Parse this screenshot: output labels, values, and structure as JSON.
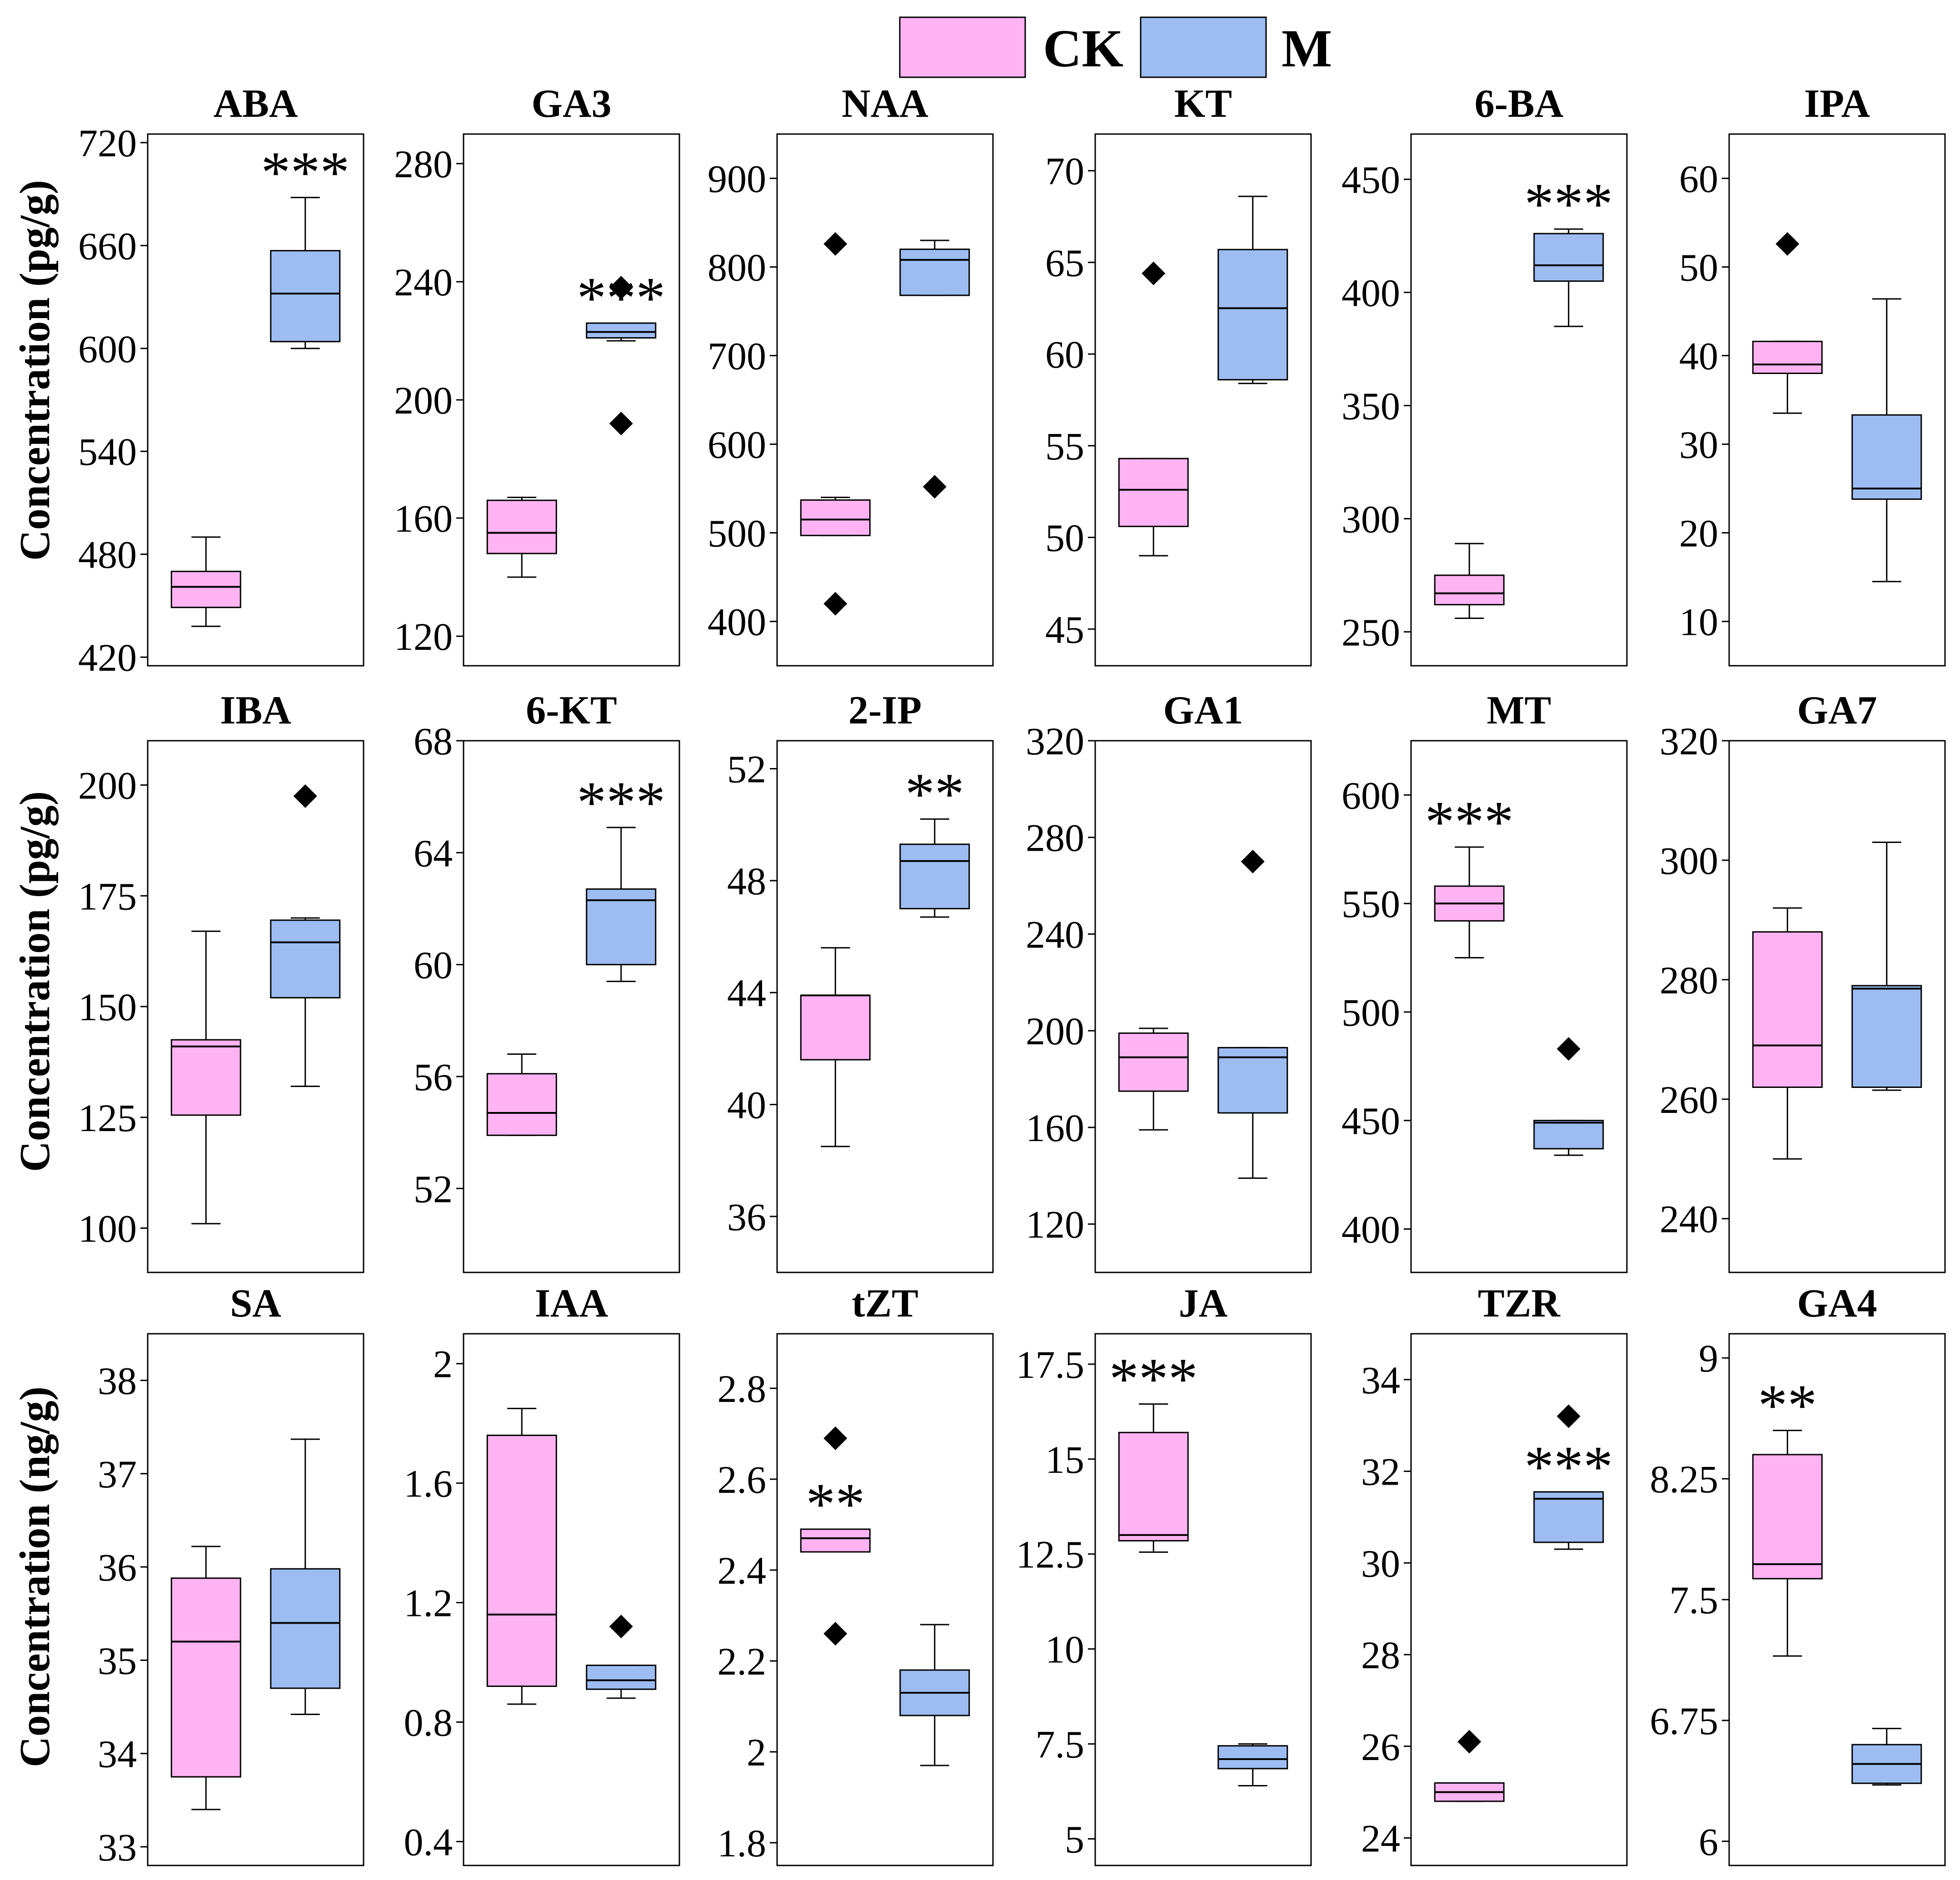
{
  "legend": {
    "items": [
      {
        "label": "CK",
        "color": "#ffb3f2"
      },
      {
        "label": "M",
        "color": "#9cbcf2"
      }
    ]
  },
  "ylabels": [
    "Concentration (pg/g)",
    "Concentration (pg/g)",
    "Concentration (ng/g)"
  ],
  "chart_data": [
    {
      "type": "box",
      "title": "ABA",
      "unit": "pg/g",
      "ylim": [
        415,
        725
      ],
      "ticks": [
        420,
        480,
        540,
        600,
        660,
        720
      ],
      "tick_labels": [
        "420",
        "480",
        "540",
        "600",
        "660",
        "720"
      ],
      "groups": [
        {
          "name": "CK",
          "min": 438,
          "q1": 449,
          "median": 461,
          "q3": 470,
          "max": 490,
          "outliers": []
        },
        {
          "name": "M",
          "min": 600,
          "q1": 604,
          "median": 632,
          "q3": 657,
          "max": 688,
          "outliers": []
        }
      ],
      "significance": [
        {
          "group": "M",
          "label": "***"
        }
      ]
    },
    {
      "type": "box",
      "title": "GA3",
      "unit": "pg/g",
      "ylim": [
        110,
        290
      ],
      "ticks": [
        120,
        160,
        200,
        240,
        280
      ],
      "tick_labels": [
        "120",
        "160",
        "200",
        "240",
        "280"
      ],
      "groups": [
        {
          "name": "CK",
          "min": 140,
          "q1": 148,
          "median": 155,
          "q3": 166,
          "max": 167,
          "outliers": []
        },
        {
          "name": "M",
          "min": 220,
          "q1": 221,
          "median": 223,
          "q3": 226,
          "max": 226,
          "outliers": [
            238,
            192
          ]
        }
      ],
      "significance": [
        {
          "group": "M",
          "label": "***"
        }
      ]
    },
    {
      "type": "box",
      "title": "NAA",
      "unit": "pg/g",
      "ylim": [
        350,
        950
      ],
      "ticks": [
        400,
        500,
        600,
        700,
        800,
        900
      ],
      "tick_labels": [
        "400",
        "500",
        "600",
        "700",
        "800",
        "900"
      ],
      "groups": [
        {
          "name": "CK",
          "min": 497,
          "q1": 497,
          "median": 515,
          "q3": 537,
          "max": 540,
          "outliers": [
            826,
            420
          ]
        },
        {
          "name": "M",
          "min": 768,
          "q1": 768,
          "median": 808,
          "q3": 820,
          "max": 830,
          "outliers": [
            552
          ]
        }
      ],
      "significance": []
    },
    {
      "type": "box",
      "title": "KT",
      "unit": "pg/g",
      "ylim": [
        43,
        72
      ],
      "ticks": [
        45,
        50,
        55,
        60,
        65,
        70
      ],
      "tick_labels": [
        "45",
        "50",
        "55",
        "60",
        "65",
        "70"
      ],
      "groups": [
        {
          "name": "CK",
          "min": 49,
          "q1": 50.6,
          "median": 52.6,
          "q3": 54.3,
          "max": 54.3,
          "outliers": [
            64.4
          ]
        },
        {
          "name": "M",
          "min": 58.4,
          "q1": 58.6,
          "median": 62.5,
          "q3": 65.7,
          "max": 68.6,
          "outliers": []
        }
      ],
      "significance": []
    },
    {
      "type": "box",
      "title": "6-BA",
      "unit": "pg/g",
      "ylim": [
        235,
        470
      ],
      "ticks": [
        250,
        300,
        350,
        400,
        450
      ],
      "tick_labels": [
        "250",
        "300",
        "350",
        "400",
        "450"
      ],
      "groups": [
        {
          "name": "CK",
          "min": 256,
          "q1": 262,
          "median": 267,
          "q3": 275,
          "max": 289,
          "outliers": []
        },
        {
          "name": "M",
          "min": 385,
          "q1": 405,
          "median": 412,
          "q3": 426,
          "max": 428,
          "outliers": []
        }
      ],
      "significance": [
        {
          "group": "M",
          "label": "***"
        }
      ]
    },
    {
      "type": "box",
      "title": "IPA",
      "unit": "pg/g",
      "ylim": [
        5,
        65
      ],
      "ticks": [
        10,
        20,
        30,
        40,
        50,
        60
      ],
      "tick_labels": [
        "10",
        "20",
        "30",
        "40",
        "50",
        "60"
      ],
      "groups": [
        {
          "name": "CK",
          "min": 33.5,
          "q1": 38,
          "median": 39,
          "q3": 41.6,
          "max": 41.6,
          "outliers": [
            52.6
          ]
        },
        {
          "name": "M",
          "min": 14.5,
          "q1": 23.8,
          "median": 25,
          "q3": 33.3,
          "max": 46.4,
          "outliers": []
        }
      ],
      "significance": []
    },
    {
      "type": "box",
      "title": "IBA",
      "unit": "pg/g",
      "ylim": [
        90,
        210
      ],
      "ticks": [
        100,
        125,
        150,
        175,
        200
      ],
      "tick_labels": [
        "100",
        "125",
        "150",
        "175",
        "200"
      ],
      "groups": [
        {
          "name": "CK",
          "min": 101,
          "q1": 125.5,
          "median": 141,
          "q3": 142.5,
          "max": 167,
          "outliers": []
        },
        {
          "name": "M",
          "min": 132,
          "q1": 152,
          "median": 164.5,
          "q3": 169.5,
          "max": 170,
          "outliers": [
            197.5
          ]
        }
      ],
      "significance": []
    },
    {
      "type": "box",
      "title": "6-KT",
      "unit": "pg/g",
      "ylim": [
        49,
        68
      ],
      "ticks": [
        52,
        56,
        60,
        64,
        68
      ],
      "tick_labels": [
        "52",
        "56",
        "60",
        "64",
        "68"
      ],
      "groups": [
        {
          "name": "CK",
          "min": 53.9,
          "q1": 53.9,
          "median": 54.7,
          "q3": 56.1,
          "max": 56.8,
          "outliers": []
        },
        {
          "name": "M",
          "min": 59.4,
          "q1": 60,
          "median": 62.3,
          "q3": 62.7,
          "max": 64.9,
          "outliers": []
        }
      ],
      "significance": [
        {
          "group": "M",
          "label": "***"
        }
      ]
    },
    {
      "type": "box",
      "title": "2-IP",
      "unit": "pg/g",
      "ylim": [
        34,
        53
      ],
      "ticks": [
        36,
        40,
        44,
        48,
        52
      ],
      "tick_labels": [
        "36",
        "40",
        "44",
        "48",
        "52"
      ],
      "groups": [
        {
          "name": "CK",
          "min": 38.5,
          "q1": 41.6,
          "median": 43.9,
          "q3": 43.9,
          "max": 45.6,
          "outliers": []
        },
        {
          "name": "M",
          "min": 46.7,
          "q1": 47,
          "median": 48.7,
          "q3": 49.3,
          "max": 50.2,
          "outliers": []
        }
      ],
      "significance": [
        {
          "group": "M",
          "label": "**"
        }
      ]
    },
    {
      "type": "box",
      "title": "GA1",
      "unit": "pg/g",
      "ylim": [
        100,
        320
      ],
      "ticks": [
        120,
        160,
        200,
        240,
        280,
        320
      ],
      "tick_labels": [
        "120",
        "160",
        "200",
        "240",
        "280",
        "320"
      ],
      "groups": [
        {
          "name": "CK",
          "min": 159,
          "q1": 175,
          "median": 189,
          "q3": 199,
          "max": 201,
          "outliers": []
        },
        {
          "name": "M",
          "min": 139,
          "q1": 166,
          "median": 189,
          "q3": 193,
          "max": 193,
          "outliers": [
            270
          ]
        }
      ],
      "significance": []
    },
    {
      "type": "box",
      "title": "MT",
      "unit": "pg/g",
      "ylim": [
        380,
        625
      ],
      "ticks": [
        400,
        450,
        500,
        550,
        600
      ],
      "tick_labels": [
        "400",
        "450",
        "500",
        "550",
        "600"
      ],
      "groups": [
        {
          "name": "CK",
          "min": 525,
          "q1": 542,
          "median": 550,
          "q3": 558,
          "max": 576,
          "outliers": []
        },
        {
          "name": "M",
          "min": 434,
          "q1": 437,
          "median": 449,
          "q3": 450,
          "max": 450,
          "outliers": [
            483
          ]
        }
      ],
      "significance": [
        {
          "group": "CK",
          "label": "***"
        }
      ]
    },
    {
      "type": "box",
      "title": "GA7",
      "unit": "pg/g",
      "ylim": [
        231,
        320
      ],
      "ticks": [
        240,
        260,
        280,
        300,
        320
      ],
      "tick_labels": [
        "240",
        "260",
        "280",
        "300",
        "320"
      ],
      "groups": [
        {
          "name": "CK",
          "min": 250,
          "q1": 262,
          "median": 269,
          "q3": 288,
          "max": 292,
          "outliers": []
        },
        {
          "name": "M",
          "min": 261.5,
          "q1": 262,
          "median": 278.5,
          "q3": 279,
          "max": 303,
          "outliers": []
        }
      ],
      "significance": []
    },
    {
      "type": "box",
      "title": "SA",
      "unit": "ng/g",
      "ylim": [
        32.8,
        38.5
      ],
      "ticks": [
        33,
        34,
        35,
        36,
        37,
        38
      ],
      "tick_labels": [
        "33",
        "34",
        "35",
        "36",
        "37",
        "38"
      ],
      "groups": [
        {
          "name": "CK",
          "min": 33.4,
          "q1": 33.75,
          "median": 35.2,
          "q3": 35.88,
          "max": 36.22,
          "outliers": []
        },
        {
          "name": "M",
          "min": 34.42,
          "q1": 34.7,
          "median": 35.4,
          "q3": 35.98,
          "max": 37.37,
          "outliers": []
        }
      ],
      "significance": []
    },
    {
      "type": "box",
      "title": "IAA",
      "unit": "ng/g",
      "ylim": [
        0.32,
        2.1
      ],
      "ticks": [
        0.4,
        0.8,
        1.2,
        1.6,
        2.0
      ],
      "tick_labels": [
        "0.4",
        "0.8",
        "1.2",
        "1.6",
        "2"
      ],
      "groups": [
        {
          "name": "CK",
          "min": 0.86,
          "q1": 0.92,
          "median": 1.16,
          "q3": 1.76,
          "max": 1.85,
          "outliers": []
        },
        {
          "name": "M",
          "min": 0.88,
          "q1": 0.91,
          "median": 0.94,
          "q3": 0.99,
          "max": 0.99,
          "outliers": [
            1.12
          ]
        }
      ],
      "significance": []
    },
    {
      "type": "box",
      "title": "tZT",
      "unit": "ng/g",
      "ylim": [
        1.75,
        2.92
      ],
      "ticks": [
        1.8,
        2.0,
        2.2,
        2.4,
        2.6,
        2.8
      ],
      "tick_labels": [
        "1.8",
        "2",
        "2.2",
        "2.4",
        "2.6",
        "2.8"
      ],
      "groups": [
        {
          "name": "CK",
          "min": 2.44,
          "q1": 2.44,
          "median": 2.47,
          "q3": 2.49,
          "max": 2.49,
          "outliers": [
            2.69,
            2.26
          ]
        },
        {
          "name": "M",
          "min": 1.97,
          "q1": 2.08,
          "median": 2.13,
          "q3": 2.18,
          "max": 2.28,
          "outliers": []
        }
      ],
      "significance": [
        {
          "group": "CK",
          "label": "**"
        }
      ]
    },
    {
      "type": "box",
      "title": "JA",
      "unit": "ng/g",
      "ylim": [
        4.3,
        18.3
      ],
      "ticks": [
        5,
        7.5,
        10,
        12.5,
        15,
        17.5
      ],
      "tick_labels": [
        "5",
        "7.5",
        "10",
        "12.5",
        "15",
        "17.5"
      ],
      "groups": [
        {
          "name": "CK",
          "min": 12.55,
          "q1": 12.85,
          "median": 13.0,
          "q3": 15.7,
          "max": 16.45,
          "outliers": []
        },
        {
          "name": "M",
          "min": 6.4,
          "q1": 6.85,
          "median": 7.1,
          "q3": 7.45,
          "max": 7.5,
          "outliers": []
        }
      ],
      "significance": [
        {
          "group": "CK",
          "label": "***"
        }
      ]
    },
    {
      "type": "box",
      "title": "TZR",
      "unit": "ng/g",
      "ylim": [
        23.4,
        35.0
      ],
      "ticks": [
        24,
        26,
        28,
        30,
        32,
        34
      ],
      "tick_labels": [
        "24",
        "26",
        "28",
        "30",
        "32",
        "34"
      ],
      "groups": [
        {
          "name": "CK",
          "min": 24.8,
          "q1": 24.8,
          "median": 25.0,
          "q3": 25.2,
          "max": 25.2,
          "outliers": [
            26.1
          ]
        },
        {
          "name": "M",
          "min": 30.3,
          "q1": 30.45,
          "median": 31.4,
          "q3": 31.55,
          "max": 31.55,
          "outliers": [
            33.2
          ]
        }
      ],
      "significance": [
        {
          "group": "M",
          "label": "***"
        }
      ]
    },
    {
      "type": "box",
      "title": "GA4",
      "unit": "ng/g",
      "ylim": [
        5.85,
        9.15
      ],
      "ticks": [
        6,
        6.75,
        7.5,
        8.25,
        9
      ],
      "tick_labels": [
        "6",
        "6.75",
        "7.5",
        "8.25",
        "9"
      ],
      "groups": [
        {
          "name": "CK",
          "min": 7.15,
          "q1": 7.63,
          "median": 7.72,
          "q3": 8.4,
          "max": 8.55,
          "outliers": []
        },
        {
          "name": "M",
          "min": 6.35,
          "q1": 6.36,
          "median": 6.48,
          "q3": 6.6,
          "max": 6.7,
          "outliers": []
        }
      ],
      "significance": [
        {
          "group": "CK",
          "label": "**"
        }
      ]
    }
  ]
}
